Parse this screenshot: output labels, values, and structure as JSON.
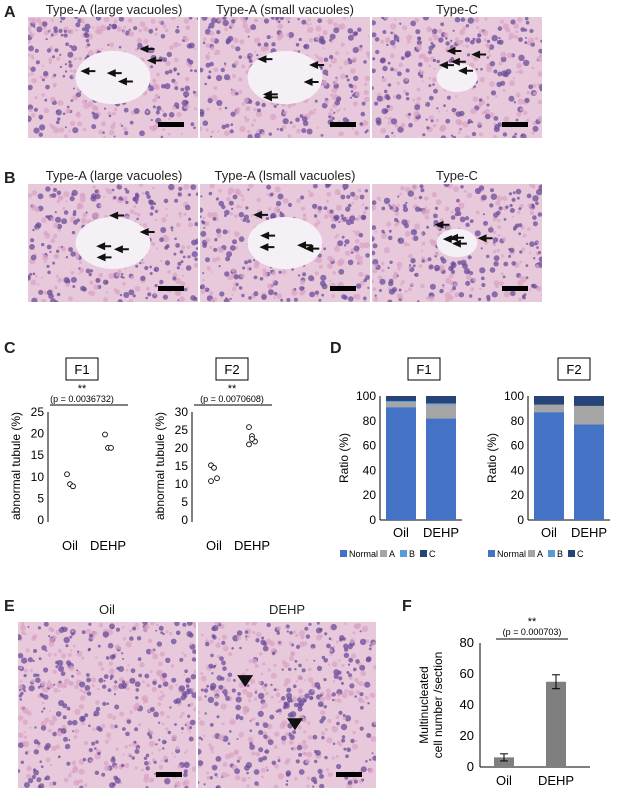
{
  "row_a": {
    "label": "A",
    "titles": [
      "Type-A (large vacuoles)",
      "Type-A (small vacuoles)",
      "Type-C"
    ]
  },
  "row_b": {
    "label": "B",
    "titles": [
      "Type-A (large vacuoles)",
      "Type-A (lsmall vacuoles)",
      "Type-C"
    ]
  },
  "panel_c": {
    "label": "C",
    "ylabel": "abnormal tubule (%)",
    "charts": [
      {
        "title": "F1",
        "sig": "**",
        "pval": "0.0036732"
      },
      {
        "title": "F2",
        "sig": "**",
        "pval": "0.0070608"
      }
    ]
  },
  "panel_d": {
    "label": "D",
    "ylabel": "Ratio (%)",
    "legend": [
      "Normal",
      "A",
      "B",
      "C"
    ],
    "charts": [
      {
        "title": "F1"
      },
      {
        "title": "F2"
      }
    ]
  },
  "panel_e": {
    "label": "E",
    "titles": [
      "Oil",
      "DEHP"
    ]
  },
  "panel_f": {
    "label": "F",
    "ylabel_line1": "Multinucleated",
    "ylabel_line2": "cell number /section",
    "sig": "**",
    "pval": "0.000703"
  },
  "colors": {
    "normal": "#4472c4",
    "a": "#a5a5a5",
    "b": "#5b9bd5",
    "c": "#264478",
    "bar_f": "#7f7f7f",
    "he_bg": "#e8c9dc",
    "he_nuclei": "#6b4c9a",
    "he_pink": "#d9a3c4"
  },
  "chart_data": [
    {
      "id": "C-F1",
      "type": "scatter",
      "title": "F1",
      "categories": [
        "Oil",
        "DEHP"
      ],
      "ylabel": "abnormal tubule (%)",
      "ylim": [
        0,
        25
      ],
      "yticks": [
        0,
        5,
        10,
        15,
        20,
        25
      ],
      "series": [
        {
          "values": [
            [
              1,
              10.6
            ],
            [
              1,
              8.3
            ],
            [
              1,
              7.8
            ]
          ]
        },
        {
          "values": [
            [
              2,
              19.8
            ],
            [
              2,
              16.7
            ],
            [
              2,
              16.7
            ]
          ]
        }
      ],
      "annotation": "** (p = 0.0036732)"
    },
    {
      "id": "C-F2",
      "type": "scatter",
      "title": "F2",
      "categories": [
        "Oil",
        "DEHP"
      ],
      "ylabel": "abnormal tubule (%)",
      "ylim": [
        0,
        30
      ],
      "yticks": [
        0,
        5,
        10,
        15,
        20,
        25,
        30
      ],
      "series": [
        {
          "values": [
            [
              1,
              15.2
            ],
            [
              1,
              14.5
            ],
            [
              1,
              11.6
            ],
            [
              1,
              10.8
            ]
          ]
        },
        {
          "values": [
            [
              2,
              25.8
            ],
            [
              2,
              23.3
            ],
            [
              2,
              21.8
            ],
            [
              2,
              21.0
            ],
            [
              2,
              22.5
            ]
          ]
        }
      ],
      "annotation": "** (p = 0.0070608)"
    },
    {
      "id": "D-F1",
      "type": "bar",
      "stacked": true,
      "title": "F1",
      "categories": [
        "Oil",
        "DEHP"
      ],
      "ylabel": "Ratio (%)",
      "ylim": [
        0,
        100
      ],
      "yticks": [
        0,
        20,
        40,
        60,
        80,
        100
      ],
      "series": [
        {
          "name": "Normal",
          "values": [
            91,
            82
          ]
        },
        {
          "name": "A",
          "values": [
            4,
            11
          ]
        },
        {
          "name": "B",
          "values": [
            1,
            1
          ]
        },
        {
          "name": "C",
          "values": [
            4,
            6
          ]
        }
      ]
    },
    {
      "id": "D-F2",
      "type": "bar",
      "stacked": true,
      "title": "F2",
      "categories": [
        "Oil",
        "DEHP"
      ],
      "ylabel": "Ratio (%)",
      "ylim": [
        0,
        100
      ],
      "yticks": [
        0,
        20,
        40,
        60,
        80,
        100
      ],
      "series": [
        {
          "name": "Normal",
          "values": [
            87,
            77
          ]
        },
        {
          "name": "A",
          "values": [
            6,
            15
          ]
        },
        {
          "name": "B",
          "values": [
            0,
            0
          ]
        },
        {
          "name": "C",
          "values": [
            7,
            8
          ]
        }
      ]
    },
    {
      "id": "F",
      "type": "bar",
      "categories": [
        "Oil",
        "DEHP"
      ],
      "values": [
        6.2,
        55
      ],
      "errors": [
        2.3,
        4.5
      ],
      "ylabel": "Multinucleated cell number /section",
      "ylim": [
        0,
        80
      ],
      "yticks": [
        0,
        20,
        40,
        60,
        80
      ],
      "annotation": "** (p = 0.000703)"
    }
  ]
}
